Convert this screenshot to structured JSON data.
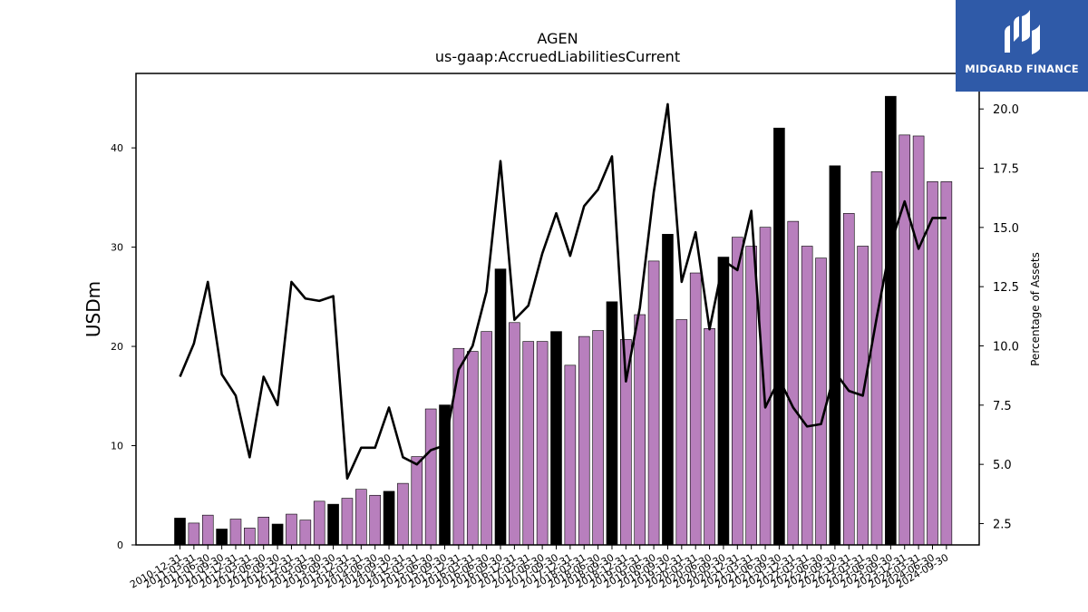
{
  "chart_data": {
    "type": "bar",
    "title": "AGEN",
    "subtitle": "us-gaap:AccruedLiabilitiesCurrent",
    "ylabel": "USDm",
    "ylabel_right": "Percentage of Assets",
    "ylim": [
      0,
      47.5
    ],
    "ylim_right": [
      1.6,
      21.5
    ],
    "yticks": [
      "0",
      "10",
      "20",
      "30",
      "40"
    ],
    "yticks_right": [
      "2.5",
      "5.0",
      "7.5",
      "10.0",
      "12.5",
      "15.0",
      "17.5",
      "20.0"
    ],
    "categories": [
      "2010-12-31",
      "2011-03-31",
      "2011-06-30",
      "2011-09-30",
      "2011-12-31",
      "2012-03-31",
      "2012-06-30",
      "2012-09-30",
      "2012-12-31",
      "2013-03-31",
      "2013-06-30",
      "2013-09-30",
      "2013-12-31",
      "2014-03-31",
      "2014-06-30",
      "2014-09-30",
      "2014-12-31",
      "2015-03-31",
      "2015-06-30",
      "2015-09-30",
      "2015-12-31",
      "2016-03-31",
      "2016-06-30",
      "2016-09-30",
      "2016-12-31",
      "2017-03-31",
      "2017-06-30",
      "2017-09-30",
      "2017-12-31",
      "2018-03-31",
      "2018-06-30",
      "2018-09-30",
      "2018-12-31",
      "2019-03-31",
      "2019-06-30",
      "2019-09-30",
      "2019-12-31",
      "2020-03-31",
      "2020-06-30",
      "2020-09-30",
      "2020-12-31",
      "2021-03-31",
      "2021-06-30",
      "2021-09-30",
      "2021-12-31",
      "2022-03-31",
      "2022-06-30",
      "2022-09-30",
      "2022-12-31",
      "2023-03-31",
      "2023-06-30",
      "2023-09-30",
      "2023-12-31",
      "2024-03-31",
      "2024-06-30",
      "2024-09-30"
    ],
    "series": [
      {
        "kind": "bar",
        "values": [
          2.7,
          2.2,
          3.0,
          1.6,
          2.6,
          1.7,
          2.8,
          2.1,
          3.1,
          2.5,
          4.4,
          4.1,
          4.7,
          5.6,
          5.0,
          5.4,
          6.2,
          8.9,
          13.7,
          14.1,
          19.8,
          19.5,
          21.5,
          27.8,
          22.4,
          20.5,
          20.5,
          21.5,
          18.1,
          21.0,
          21.6,
          24.5,
          20.7,
          23.2,
          28.6,
          31.3,
          22.7,
          27.4,
          21.8,
          29.0,
          31.0,
          30.1,
          32.0,
          42.0,
          32.6,
          30.1,
          28.9,
          38.2,
          33.4,
          30.1,
          37.6,
          45.2,
          41.3,
          41.2,
          36.6,
          36.6
        ],
        "colors": [
          "#000000",
          "#b87fbd",
          "#b87fbd",
          "#000000",
          "#b87fbd",
          "#b87fbd",
          "#b87fbd",
          "#000000",
          "#b87fbd",
          "#b87fbd",
          "#b87fbd",
          "#000000",
          "#b87fbd",
          "#b87fbd",
          "#b87fbd",
          "#000000",
          "#b87fbd",
          "#b87fbd",
          "#b87fbd",
          "#000000",
          "#b87fbd",
          "#b87fbd",
          "#b87fbd",
          "#000000",
          "#b87fbd",
          "#b87fbd",
          "#b87fbd",
          "#000000",
          "#b87fbd",
          "#b87fbd",
          "#b87fbd",
          "#000000",
          "#b87fbd",
          "#b87fbd",
          "#b87fbd",
          "#000000",
          "#b87fbd",
          "#b87fbd",
          "#b87fbd",
          "#000000",
          "#b87fbd",
          "#b87fbd",
          "#b87fbd",
          "#000000",
          "#b87fbd",
          "#b87fbd",
          "#b87fbd",
          "#000000",
          "#b87fbd",
          "#b87fbd",
          "#b87fbd",
          "#000000",
          "#b87fbd",
          "#b87fbd",
          "#b87fbd",
          "#b87fbd"
        ]
      },
      {
        "kind": "line",
        "axis": "right",
        "color": "#000000",
        "values": [
          8.7,
          10.1,
          12.7,
          8.8,
          7.9,
          5.3,
          8.7,
          7.5,
          12.7,
          12.0,
          11.9,
          12.1,
          4.4,
          5.7,
          5.7,
          7.4,
          5.3,
          5.0,
          5.6,
          5.8,
          9.0,
          10.0,
          12.3,
          17.8,
          11.1,
          11.7,
          13.9,
          15.6,
          13.8,
          15.9,
          16.6,
          18.0,
          8.5,
          11.6,
          16.5,
          20.2,
          12.7,
          14.8,
          10.7,
          13.6,
          13.2,
          15.7,
          7.4,
          8.6,
          7.4,
          6.6,
          6.7,
          8.9,
          8.1,
          7.9,
          11.2,
          14.3,
          16.1,
          14.1,
          15.4,
          15.4
        ]
      }
    ],
    "grid": false,
    "legend": "none"
  },
  "logo": {
    "text": "MIDGARD FINANCE",
    "color": "#2f5aa8"
  }
}
